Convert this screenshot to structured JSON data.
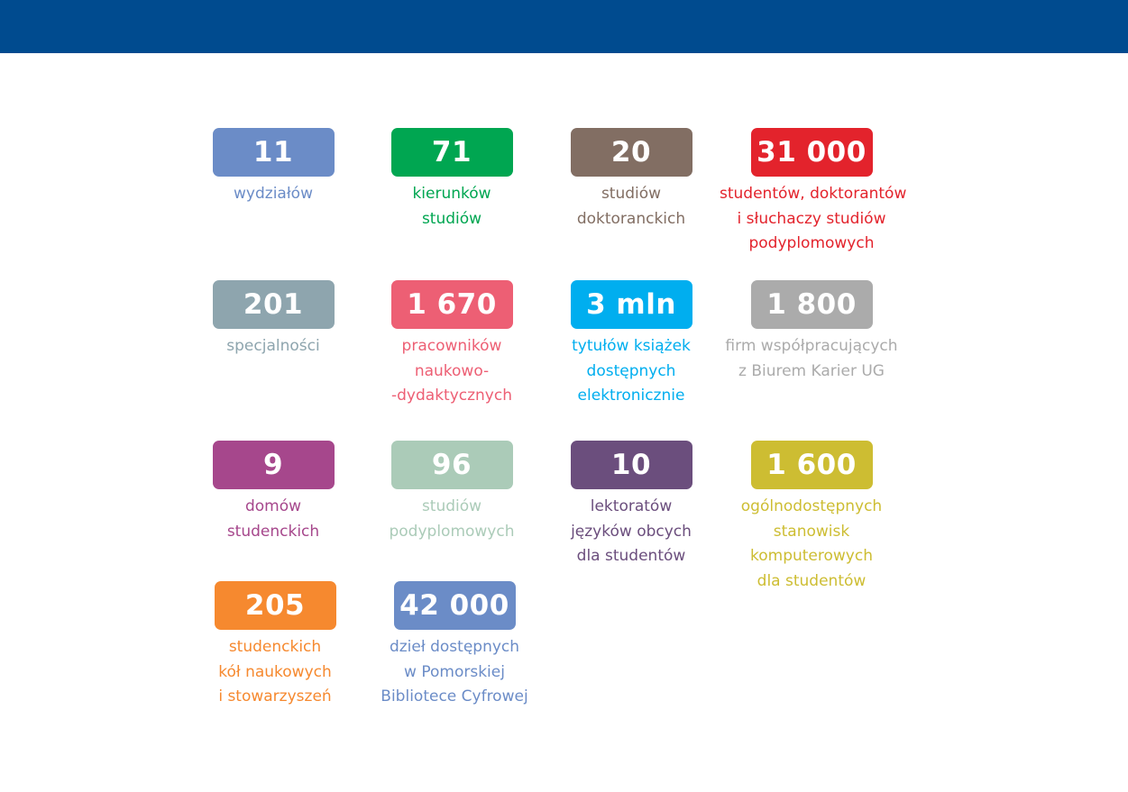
{
  "stats": [
    {
      "value": "11",
      "lines": [
        "wydziałów"
      ],
      "color": "#6b8cc7"
    },
    {
      "value": "71",
      "lines": [
        "kierunków",
        "studiów"
      ],
      "color": "#00a651"
    },
    {
      "value": "20",
      "lines": [
        "studiów",
        "doktoranckich"
      ],
      "color": "#826e63"
    },
    {
      "value": "31 000",
      "lines": [
        "studentów, doktorantów",
        "i słuchaczy studiów",
        "podyplomowych"
      ],
      "color": "#e3232c"
    },
    {
      "value": "201",
      "lines": [
        "specjalności"
      ],
      "color": "#8ea5ae"
    },
    {
      "value": "1 670",
      "lines": [
        "pracowników",
        "naukowo-",
        "-dydaktycznych"
      ],
      "color": "#ed5f74"
    },
    {
      "value": "3 mln",
      "lines": [
        "tytułów książek",
        "dostępnych",
        "elektronicznie"
      ],
      "color": "#00aeef"
    },
    {
      "value": "1 800",
      "lines": [
        "firm współpracujących",
        "z Biurem Karier UG"
      ],
      "color": "#ababab"
    },
    {
      "value": "9",
      "lines": [
        "domów",
        "studenckich"
      ],
      "color": "#a6478c"
    },
    {
      "value": "96",
      "lines": [
        "studiów",
        "podyplomowych"
      ],
      "color": "#abcbb8"
    },
    {
      "value": "10",
      "lines": [
        "lektoratów",
        "języków obcych",
        "dla studentów"
      ],
      "color": "#6b4e7d"
    },
    {
      "value": "1 600",
      "lines": [
        "ogólnodostępnych",
        "stanowisk",
        "komputerowych",
        "dla studentów"
      ],
      "color": "#cdbd32"
    },
    {
      "value": "205",
      "lines": [
        "studenckich",
        "kół naukowych",
        "i stowarzyszeń"
      ],
      "color": "#f6892f"
    },
    {
      "value": "42 000",
      "lines": [
        "dzieł dostępnych",
        "w Pomorskiej",
        "Bibliotece Cyfrowej"
      ],
      "color": "#6b8cc7"
    }
  ]
}
